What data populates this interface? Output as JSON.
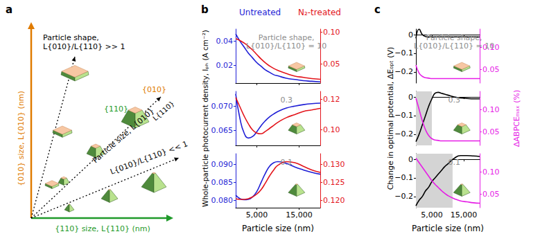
{
  "diagram": {
    "label": "a",
    "y_axis": "{010} size, L{010} (nm)",
    "x_axis": "{110} size, L{110} (nm)",
    "upper_arrow": [
      "Particle shape,",
      "L{010}/L{110} >> 1"
    ],
    "middle_arrow": "Particle size, L{010}",
    "middle_arrow_end": "L{110}",
    "lower_arrow": "L{010}/L{110} << 1",
    "facet_top": "{010}",
    "facet_side": "{110}"
  },
  "figure": {
    "x_label": "Particle size (nm)",
    "b_ylabel": "Whole-particle photocurrent density, Iₚₕ (A cm⁻²)",
    "c_ylabel": "Change in optimal potential, ΔEₒₚₜ (V)",
    "c_y2label": "ΔABPCEₘₐₓ (%)"
  },
  "chart_data": [
    {
      "type": "line",
      "panel": "b",
      "annotation": [
        "Particle shape,",
        "L{010}/L{110} = 10"
      ],
      "x": [
        0,
        1000,
        2000,
        3000,
        4000,
        5000,
        6000,
        7000,
        8000,
        9000,
        10000,
        12000,
        14000,
        16000,
        18000,
        20000
      ],
      "xlim": [
        0,
        20000
      ],
      "xticks": [
        {
          "value": 5000,
          "label": "5,000"
        },
        {
          "value": 15000,
          "label": "15,000"
        }
      ],
      "tick_labels": "y",
      "ylim": [
        0.005,
        0.05
      ],
      "yticks": [
        0.02,
        0.04
      ],
      "y2lim": [
        0.02,
        0.105
      ],
      "y2ticks": [
        0.05,
        {
          "value": 0.1,
          "label": "0.10"
        }
      ],
      "series": [
        {
          "name": "Untreated",
          "color": "#1f1fd6",
          "values": [
            0.046,
            0.04,
            0.035,
            0.03,
            0.026,
            0.022,
            0.019,
            0.016,
            0.014,
            0.012,
            0.011,
            0.009,
            0.008,
            0.007,
            0.0065,
            0.006
          ]
        },
        {
          "name": "N₂-treated",
          "color": "#e3141b",
          "axis": "y2",
          "values": [
            0.09,
            0.087,
            0.083,
            0.078,
            0.072,
            0.065,
            0.058,
            0.052,
            0.047,
            0.043,
            0.04,
            0.035,
            0.031,
            0.029,
            0.027,
            0.026
          ]
        }
      ]
    },
    {
      "type": "line",
      "panel": "b",
      "annotation": [
        "0.3"
      ],
      "x": [
        0,
        1000,
        2000,
        3000,
        4000,
        5000,
        6000,
        7000,
        8000,
        9000,
        10000,
        12000,
        14000,
        16000,
        18000,
        20000
      ],
      "xlim": [
        0,
        20000
      ],
      "xticks": [
        {
          "value": 5000,
          "label": "5,000"
        },
        {
          "value": 15000,
          "label": "15,000"
        }
      ],
      "tick_labels": "y",
      "ylim": [
        0.062,
        0.073
      ],
      "yticks": [
        0.065,
        {
          "value": 0.07,
          "label": "0.070"
        }
      ],
      "y2lim": [
        0.09,
        0.125
      ],
      "y2ticks": [
        {
          "value": 0.1,
          "label": "0.10"
        },
        0.12
      ],
      "series": [
        {
          "name": "Untreated",
          "color": "#1f1fd6",
          "values": [
            0.0725,
            0.0675,
            0.0645,
            0.0635,
            0.0638,
            0.0648,
            0.066,
            0.067,
            0.0678,
            0.0684,
            0.0689,
            0.0696,
            0.07,
            0.0703,
            0.0705,
            0.0706
          ]
        },
        {
          "name": "N₂-treated",
          "color": "#e3141b",
          "axis": "y2",
          "values": [
            0.121,
            0.115,
            0.109,
            0.104,
            0.1,
            0.098,
            0.0975,
            0.099,
            0.101,
            0.103,
            0.105,
            0.108,
            0.11,
            0.112,
            0.113,
            0.114
          ]
        }
      ]
    },
    {
      "type": "line",
      "panel": "b",
      "annotation": [
        "0.1"
      ],
      "x": [
        0,
        1000,
        2000,
        3000,
        4000,
        5000,
        6000,
        7000,
        8000,
        9000,
        10000,
        12000,
        14000,
        16000,
        18000,
        20000
      ],
      "xlim": [
        0,
        20000
      ],
      "xticks": [
        {
          "value": 5000,
          "label": "5,000"
        },
        {
          "value": 15000,
          "label": "15,000"
        }
      ],
      "ylim": [
        0.078,
        0.093
      ],
      "yticks": [
        {
          "value": 0.08,
          "label": "0.080"
        },
        0.085,
        {
          "value": 0.09,
          "label": "0.090"
        }
      ],
      "y2lim": [
        0.118,
        0.133
      ],
      "y2ticks": [
        {
          "value": 0.12,
          "label": "0.120"
        },
        0.125,
        {
          "value": 0.13,
          "label": "0.130"
        }
      ],
      "series": [
        {
          "name": "Untreated",
          "color": "#1f1fd6",
          "values": [
            0.0815,
            0.0805,
            0.0802,
            0.0803,
            0.081,
            0.0825,
            0.085,
            0.0875,
            0.0895,
            0.0905,
            0.0908,
            0.0903,
            0.0893,
            0.0885,
            0.0878,
            0.0873
          ]
        },
        {
          "name": "N₂-treated",
          "color": "#e3141b",
          "axis": "y2",
          "values": [
            0.1205,
            0.1203,
            0.1203,
            0.1205,
            0.121,
            0.1218,
            0.123,
            0.1248,
            0.1268,
            0.1285,
            0.1298,
            0.1308,
            0.1305,
            0.1295,
            0.1285,
            0.1278
          ]
        }
      ]
    },
    {
      "type": "line",
      "panel": "c",
      "annotation": [
        "Particle shape,",
        "L{010}/L{110} = 10"
      ],
      "x": [
        0,
        1000,
        2000,
        3000,
        4000,
        5000,
        6000,
        7000,
        8000,
        9000,
        10000,
        12000,
        14000,
        16000,
        18000,
        20000
      ],
      "xlim": [
        0,
        20000
      ],
      "xticks": [
        {
          "value": 5000,
          "label": "5,000"
        },
        {
          "value": 15000,
          "label": "15,000"
        }
      ],
      "tick_labels": "y",
      "ylim": [
        -0.26,
        0.03
      ],
      "yticks": [
        {
          "value": -0.2,
          "label": "−0.2"
        },
        {
          "value": -0.1,
          "label": "−0.1"
        },
        0
      ],
      "y2lim": [
        0.02,
        0.14
      ],
      "y2ticks": [
        0.05,
        {
          "value": 0.1,
          "label": "0.10"
        }
      ],
      "series": [
        {
          "name": "ΔEₒₚₜ",
          "color": "#000000",
          "values": [
            -0.02,
            0.03,
            0.0,
            -0.01,
            -0.012,
            -0.012,
            -0.012,
            -0.012,
            -0.012,
            -0.012,
            -0.012,
            -0.012,
            -0.012,
            -0.012,
            -0.012,
            -0.012
          ]
        },
        {
          "name": "ΔABPCEₘₐₓ",
          "color": "#e61ee6",
          "axis": "y2",
          "values": [
            0.06,
            0.042,
            0.035,
            0.032,
            0.031,
            0.03,
            0.03,
            0.03,
            0.03,
            0.03,
            0.03,
            0.03,
            0.03,
            0.03,
            0.03,
            0.03
          ]
        }
      ]
    },
    {
      "type": "line",
      "panel": "c",
      "annotation": [
        "0.3"
      ],
      "shaded_range": [
        0,
        5000
      ],
      "x": [
        0,
        1000,
        2000,
        3000,
        4000,
        5000,
        6000,
        7000,
        8000,
        9000,
        10000,
        12000,
        14000,
        16000,
        18000,
        20000
      ],
      "xlim": [
        0,
        20000
      ],
      "xticks": [
        {
          "value": 5000,
          "label": "5,000"
        },
        {
          "value": 15000,
          "label": "15,000"
        }
      ],
      "tick_labels": "y",
      "ylim": [
        -0.26,
        0.03
      ],
      "yticks": [
        {
          "value": -0.2,
          "label": "−0.2"
        },
        {
          "value": -0.1,
          "label": "−0.1"
        },
        0
      ],
      "y2lim": [
        0.02,
        0.14
      ],
      "y2ticks": [
        0.05,
        {
          "value": 0.1,
          "label": "0.10"
        }
      ],
      "series": [
        {
          "name": "ΔEₒₚₜ",
          "color": "#000000",
          "values": [
            -0.24,
            -0.2,
            -0.15,
            -0.1,
            -0.05,
            -0.01,
            0.02,
            0.025,
            0.02,
            0.015,
            0.01,
            0.0,
            -0.005,
            -0.008,
            -0.01,
            -0.01
          ]
        },
        {
          "name": "ΔABPCEₘₐₓ",
          "color": "#e61ee6",
          "axis": "y2",
          "values": [
            0.125,
            0.1,
            0.075,
            0.055,
            0.042,
            0.035,
            0.032,
            0.031,
            0.03,
            0.03,
            0.03,
            0.03,
            0.03,
            0.03,
            0.03,
            0.03
          ]
        }
      ]
    },
    {
      "type": "line",
      "panel": "c",
      "annotation": [
        "0.1"
      ],
      "shaded_range": [
        0,
        11500
      ],
      "x": [
        0,
        1000,
        2000,
        3000,
        4000,
        5000,
        6000,
        7000,
        8000,
        9000,
        10000,
        12000,
        14000,
        16000,
        18000,
        20000
      ],
      "xlim": [
        0,
        20000
      ],
      "xticks": [
        {
          "value": 5000,
          "label": "5,000"
        },
        {
          "value": 15000,
          "label": "15,000"
        }
      ],
      "ylim": [
        -0.26,
        0.03
      ],
      "yticks": [
        {
          "value": -0.2,
          "label": "−0.2"
        },
        {
          "value": -0.1,
          "label": "−0.1"
        },
        0
      ],
      "y2lim": [
        0.02,
        0.14
      ],
      "y2ticks": [
        0.05,
        {
          "value": 0.1,
          "label": "0.10"
        }
      ],
      "series": [
        {
          "name": "ΔEₒₚₜ",
          "color": "#000000",
          "values": [
            -0.25,
            -0.22,
            -0.2,
            -0.17,
            -0.15,
            -0.12,
            -0.1,
            -0.08,
            -0.06,
            -0.04,
            -0.025,
            0.005,
            0.02,
            0.02,
            0.018,
            0.015
          ]
        },
        {
          "name": "ΔABPCEₘₐₓ",
          "color": "#e61ee6",
          "axis": "y2",
          "values": [
            0.13,
            0.12,
            0.11,
            0.1,
            0.09,
            0.08,
            0.072,
            0.065,
            0.058,
            0.052,
            0.047,
            0.04,
            0.035,
            0.033,
            0.031,
            0.03
          ]
        }
      ]
    }
  ]
}
